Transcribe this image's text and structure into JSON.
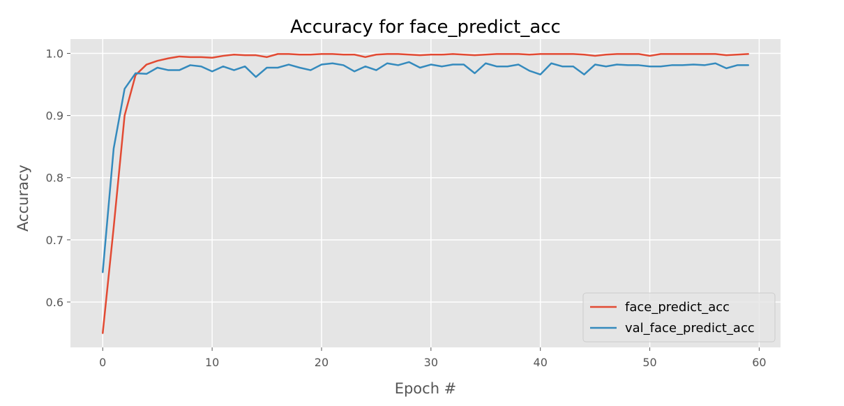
{
  "chart_data": {
    "type": "line",
    "title": "Accuracy for face_predict_acc",
    "xlabel": "Epoch #",
    "ylabel": "Accuracy",
    "xlim": [
      -2.95,
      61.95
    ],
    "ylim": [
      0.527,
      1.023
    ],
    "xticks": [
      0,
      10,
      20,
      30,
      40,
      50,
      60
    ],
    "yticks": [
      0.6,
      0.7,
      0.8,
      0.9,
      1.0
    ],
    "xtick_labels": [
      "0",
      "10",
      "20",
      "30",
      "40",
      "50",
      "60"
    ],
    "ytick_labels": [
      "0.6",
      "0.7",
      "0.8",
      "0.9",
      "1.0"
    ],
    "grid": true,
    "legend_position": "lower-right",
    "x": [
      0,
      1,
      2,
      3,
      4,
      5,
      6,
      7,
      8,
      9,
      10,
      11,
      12,
      13,
      14,
      15,
      16,
      17,
      18,
      19,
      20,
      21,
      22,
      23,
      24,
      25,
      26,
      27,
      28,
      29,
      30,
      31,
      32,
      33,
      34,
      35,
      36,
      37,
      38,
      39,
      40,
      41,
      42,
      43,
      44,
      45,
      46,
      47,
      48,
      49,
      50,
      51,
      52,
      53,
      54,
      55,
      56,
      57,
      58,
      59
    ],
    "series": [
      {
        "name": "face_predict_acc",
        "color": "#E24A33",
        "values": [
          0.55,
          0.72,
          0.9,
          0.965,
          0.982,
          0.988,
          0.992,
          0.995,
          0.994,
          0.994,
          0.993,
          0.996,
          0.998,
          0.997,
          0.997,
          0.994,
          0.999,
          0.999,
          0.998,
          0.998,
          0.999,
          0.999,
          0.998,
          0.998,
          0.994,
          0.998,
          0.999,
          0.999,
          0.998,
          0.997,
          0.998,
          0.998,
          0.999,
          0.998,
          0.997,
          0.998,
          0.999,
          0.999,
          0.999,
          0.998,
          0.999,
          0.999,
          0.999,
          0.999,
          0.998,
          0.996,
          0.998,
          0.999,
          0.999,
          0.999,
          0.996,
          0.999,
          0.999,
          0.999,
          0.999,
          0.999,
          0.999,
          0.997,
          0.998,
          0.999
        ]
      },
      {
        "name": "val_face_predict_acc",
        "color": "#348ABD",
        "values": [
          0.648,
          0.847,
          0.943,
          0.968,
          0.967,
          0.977,
          0.973,
          0.973,
          0.981,
          0.979,
          0.971,
          0.979,
          0.973,
          0.979,
          0.962,
          0.977,
          0.977,
          0.982,
          0.977,
          0.973,
          0.982,
          0.984,
          0.981,
          0.971,
          0.979,
          0.973,
          0.984,
          0.981,
          0.986,
          0.977,
          0.982,
          0.979,
          0.982,
          0.982,
          0.968,
          0.984,
          0.979,
          0.979,
          0.982,
          0.972,
          0.966,
          0.984,
          0.979,
          0.979,
          0.966,
          0.982,
          0.979,
          0.982,
          0.981,
          0.981,
          0.979,
          0.979,
          0.981,
          0.981,
          0.982,
          0.981,
          0.984,
          0.976,
          0.981,
          0.981
        ]
      }
    ]
  }
}
